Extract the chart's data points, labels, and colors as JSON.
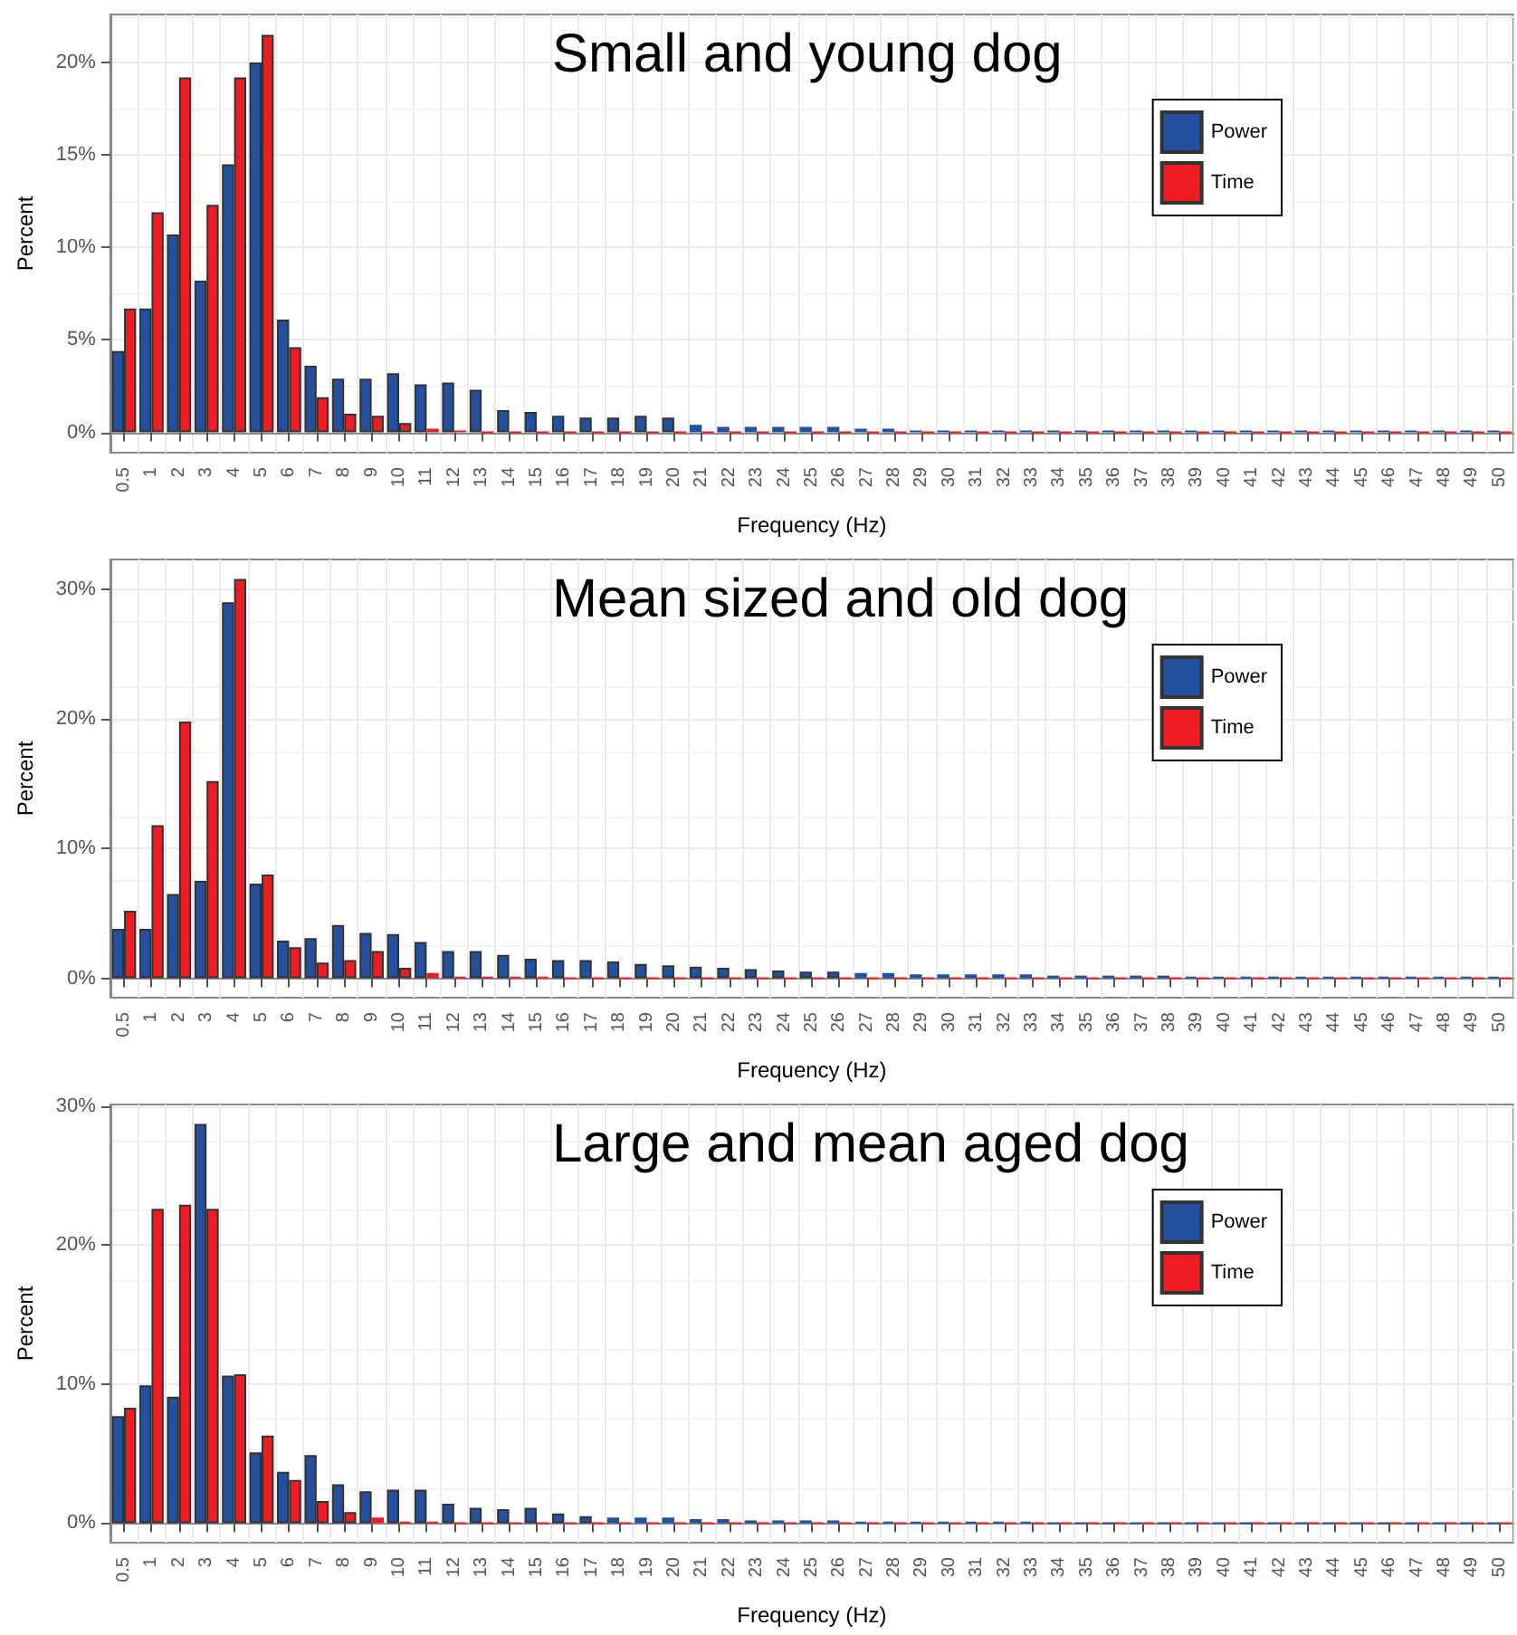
{
  "chart_data": [
    {
      "type": "bar",
      "title": "Small and young dog",
      "xlabel": "Frequency (Hz)",
      "ylabel": "Percent",
      "categories": [
        "0.5",
        "1",
        "2",
        "3",
        "4",
        "5",
        "6",
        "7",
        "8",
        "9",
        "10",
        "11",
        "12",
        "13",
        "14",
        "15",
        "16",
        "17",
        "18",
        "19",
        "20",
        "21",
        "22",
        "23",
        "24",
        "25",
        "26",
        "27",
        "28",
        "29",
        "30",
        "31",
        "32",
        "33",
        "34",
        "35",
        "36",
        "37",
        "38",
        "39",
        "40",
        "41",
        "42",
        "43",
        "44",
        "45",
        "46",
        "47",
        "48",
        "49",
        "50"
      ],
      "series": [
        {
          "name": "Power",
          "color": "#2450a0",
          "values": [
            4.4,
            6.7,
            10.7,
            8.2,
            14.5,
            20,
            6.1,
            3.6,
            2.9,
            2.9,
            3.2,
            2.6,
            2.7,
            2.3,
            1.2,
            1.1,
            0.9,
            0.8,
            0.8,
            0.9,
            0.8,
            0.4,
            0.3,
            0.3,
            0.3,
            0.3,
            0.3,
            0.2,
            0.2,
            0.1,
            0.1,
            0.1,
            0.1,
            0.1,
            0.1,
            0.1,
            0.1,
            0.1,
            0.1,
            0.1,
            0.1,
            0.1,
            0.1,
            0.1,
            0.1,
            0.1,
            0.1,
            0.1,
            0.1,
            0.1,
            0.1
          ]
        },
        {
          "name": "Time",
          "color": "#ee1d24",
          "values": [
            6.7,
            11.9,
            19.2,
            12.3,
            19.2,
            21.5,
            4.6,
            1.9,
            1.0,
            0.9,
            0.5,
            0.2,
            0.1,
            0,
            0,
            0,
            0,
            0,
            0,
            0,
            0,
            0,
            0,
            0,
            0,
            0,
            0,
            0,
            0,
            0,
            0,
            0,
            0,
            0,
            0,
            0,
            0,
            0,
            0,
            0,
            0,
            0,
            0,
            0,
            0,
            0,
            0,
            0,
            0,
            0,
            0
          ]
        }
      ],
      "ylim": [
        -1.1,
        22.6
      ],
      "yticks": [
        {
          "value": 0,
          "label": "0%"
        },
        {
          "value": 5,
          "label": "5%"
        },
        {
          "value": 10,
          "label": "10%"
        },
        {
          "value": 15,
          "label": "15%"
        },
        {
          "value": 20,
          "label": "20%"
        }
      ],
      "grid": true,
      "legend": "top right"
    },
    {
      "type": "bar",
      "title": "Mean sized and old dog",
      "xlabel": "Frequency (Hz)",
      "ylabel": "Percent",
      "categories": [
        "0.5",
        "1",
        "2",
        "3",
        "4",
        "5",
        "6",
        "7",
        "8",
        "9",
        "10",
        "11",
        "12",
        "13",
        "14",
        "15",
        "16",
        "17",
        "18",
        "19",
        "20",
        "21",
        "22",
        "23",
        "24",
        "25",
        "26",
        "27",
        "28",
        "29",
        "30",
        "31",
        "32",
        "33",
        "34",
        "35",
        "36",
        "37",
        "38",
        "39",
        "40",
        "41",
        "42",
        "43",
        "44",
        "45",
        "46",
        "47",
        "48",
        "49",
        "50"
      ],
      "series": [
        {
          "name": "Power",
          "color": "#2450a0",
          "values": [
            3.8,
            3.8,
            6.5,
            7.5,
            29,
            7.3,
            2.9,
            3.1,
            4.1,
            3.5,
            3.4,
            2.8,
            2.1,
            2.1,
            1.8,
            1.5,
            1.4,
            1.4,
            1.3,
            1.1,
            1.0,
            0.9,
            0.8,
            0.7,
            0.6,
            0.5,
            0.5,
            0.4,
            0.4,
            0.3,
            0.3,
            0.3,
            0.3,
            0.3,
            0.2,
            0.2,
            0.2,
            0.2,
            0.2,
            0.1,
            0.1,
            0.1,
            0.1,
            0.1,
            0.1,
            0.1,
            0.1,
            0.1,
            0.1,
            0.1,
            0.1
          ]
        },
        {
          "name": "Time",
          "color": "#ee1d24",
          "values": [
            5.2,
            11.8,
            19.8,
            15.2,
            30.8,
            8.0,
            2.4,
            1.2,
            1.4,
            2.1,
            0.8,
            0.4,
            0.1,
            0.1,
            0.1,
            0.1,
            0,
            0,
            0,
            0,
            0,
            0,
            0,
            0,
            0,
            0,
            0,
            0,
            0,
            0,
            0,
            0,
            0,
            0,
            0,
            0,
            0,
            0,
            0,
            0,
            0,
            0,
            0,
            0,
            0,
            0,
            0,
            0,
            0,
            0,
            0
          ]
        }
      ],
      "ylim": [
        -1.5,
        32.3
      ],
      "yticks": [
        {
          "value": 0,
          "label": "0%"
        },
        {
          "value": 10,
          "label": "10%"
        },
        {
          "value": 20,
          "label": "20%"
        },
        {
          "value": 30,
          "label": "30%"
        }
      ],
      "grid": true,
      "legend": "top right"
    },
    {
      "type": "bar",
      "title": "Large and mean aged dog",
      "xlabel": "Frequency (Hz)",
      "ylabel": "Percent",
      "categories": [
        "0.5",
        "1",
        "2",
        "3",
        "4",
        "5",
        "6",
        "7",
        "8",
        "9",
        "10",
        "11",
        "12",
        "13",
        "14",
        "15",
        "16",
        "17",
        "18",
        "19",
        "20",
        "21",
        "22",
        "23",
        "24",
        "25",
        "26",
        "27",
        "28",
        "29",
        "30",
        "31",
        "32",
        "33",
        "34",
        "35",
        "36",
        "37",
        "38",
        "39",
        "40",
        "41",
        "42",
        "43",
        "44",
        "45",
        "46",
        "47",
        "48",
        "49",
        "50"
      ],
      "series": [
        {
          "name": "Power",
          "color": "#2450a0",
          "values": [
            7.7,
            9.9,
            9.1,
            28.7,
            10.6,
            5.1,
            3.7,
            4.9,
            2.8,
            2.3,
            2.4,
            2.4,
            1.4,
            1.1,
            1.0,
            1.1,
            0.7,
            0.5,
            0.4,
            0.4,
            0.4,
            0.3,
            0.3,
            0.2,
            0.2,
            0.2,
            0.2,
            0.1,
            0.1,
            0.1,
            0.1,
            0.1,
            0.1,
            0.1,
            0,
            0,
            0,
            0,
            0,
            0,
            0,
            0,
            0,
            0,
            0,
            0,
            0,
            0,
            0,
            0,
            0
          ]
        },
        {
          "name": "Time",
          "color": "#ee1d24",
          "values": [
            8.3,
            22.6,
            22.9,
            22.6,
            10.7,
            6.3,
            3.1,
            1.6,
            0.8,
            0.4,
            0.1,
            0.1,
            0,
            0,
            0,
            0,
            0,
            0,
            0,
            0,
            0,
            0,
            0,
            0,
            0,
            0,
            0,
            0,
            0,
            0,
            0,
            0,
            0,
            0,
            0,
            0,
            0,
            0,
            0,
            0,
            0,
            0,
            0,
            0,
            0,
            0,
            0,
            0,
            0,
            0,
            0
          ]
        }
      ],
      "ylim": [
        -1.4,
        30.1
      ],
      "yticks": [
        {
          "value": 0,
          "label": "0%"
        },
        {
          "value": 10,
          "label": "10%"
        },
        {
          "value": 20,
          "label": "20%"
        },
        {
          "value": 30,
          "label": "30%"
        }
      ],
      "grid": true,
      "legend": "top right"
    }
  ]
}
